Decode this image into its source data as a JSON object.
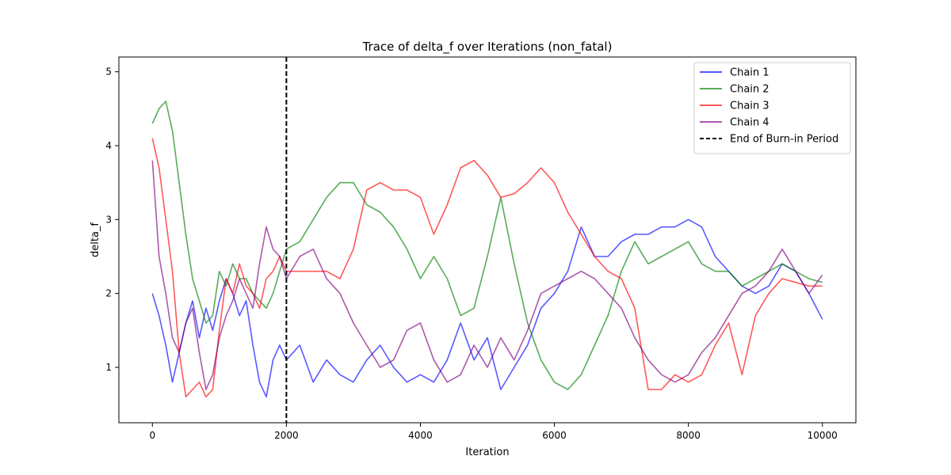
{
  "chart_data": {
    "type": "line",
    "title": "Trace of delta_f over Iterations (non_fatal)",
    "xlabel": "Iteration",
    "ylabel": "delta_f",
    "xlim": [
      -500,
      10500
    ],
    "ylim": [
      0.25,
      5.2
    ],
    "xticks": [
      0,
      2000,
      4000,
      6000,
      8000,
      10000
    ],
    "yticks": [
      1,
      2,
      3,
      4,
      5
    ],
    "grid": false,
    "legend_position": "top-right",
    "burn_in": {
      "x": 2000,
      "label": "End of Burn-in Period",
      "color": "#000000",
      "style": "dashed"
    },
    "series": [
      {
        "name": "Chain 1",
        "color": "#0000ff",
        "x": [
          0,
          100,
          200,
          300,
          400,
          500,
          600,
          700,
          800,
          900,
          1000,
          1100,
          1200,
          1300,
          1400,
          1500,
          1600,
          1700,
          1800,
          1900,
          2000,
          2200,
          2400,
          2600,
          2800,
          3000,
          3200,
          3400,
          3600,
          3800,
          4000,
          4200,
          4400,
          4600,
          4800,
          5000,
          5200,
          5400,
          5600,
          5800,
          6000,
          6200,
          6400,
          6600,
          6800,
          7000,
          7200,
          7400,
          7600,
          7800,
          8000,
          8200,
          8400,
          8600,
          8800,
          9000,
          9200,
          9400,
          9600,
          9800,
          10000
        ],
        "y": [
          2.0,
          1.7,
          1.3,
          0.8,
          1.2,
          1.6,
          1.9,
          1.4,
          1.8,
          1.5,
          1.9,
          2.2,
          2.0,
          1.7,
          1.9,
          1.3,
          0.8,
          0.6,
          1.1,
          1.3,
          1.1,
          1.3,
          0.8,
          1.1,
          0.9,
          0.8,
          1.1,
          1.3,
          1.0,
          0.8,
          0.9,
          0.8,
          1.1,
          1.6,
          1.1,
          1.4,
          0.7,
          1.0,
          1.3,
          1.8,
          2.0,
          2.3,
          2.9,
          2.5,
          2.5,
          2.7,
          2.8,
          2.8,
          2.9,
          2.9,
          3.0,
          2.9,
          2.5,
          2.3,
          2.1,
          2.0,
          2.1,
          2.4,
          2.3,
          2.0,
          1.65
        ]
      },
      {
        "name": "Chain 2",
        "color": "#008000",
        "x": [
          0,
          100,
          200,
          300,
          400,
          500,
          600,
          700,
          800,
          900,
          1000,
          1100,
          1200,
          1300,
          1400,
          1500,
          1600,
          1700,
          1800,
          1900,
          2000,
          2200,
          2400,
          2600,
          2800,
          3000,
          3200,
          3400,
          3600,
          3800,
          4000,
          4200,
          4400,
          4600,
          4800,
          5000,
          5200,
          5400,
          5600,
          5800,
          6000,
          6200,
          6400,
          6600,
          6800,
          7000,
          7200,
          7400,
          7600,
          7800,
          8000,
          8200,
          8400,
          8600,
          8800,
          9000,
          9200,
          9400,
          9600,
          9800,
          10000
        ],
        "y": [
          4.3,
          4.5,
          4.6,
          4.2,
          3.5,
          2.8,
          2.2,
          1.9,
          1.6,
          1.7,
          2.3,
          2.1,
          2.4,
          2.2,
          2.2,
          2.0,
          1.9,
          1.8,
          2.0,
          2.3,
          2.6,
          2.7,
          3.0,
          3.3,
          3.5,
          3.5,
          3.2,
          3.1,
          2.9,
          2.6,
          2.2,
          2.5,
          2.2,
          1.7,
          1.8,
          2.5,
          3.3,
          2.4,
          1.6,
          1.1,
          0.8,
          0.7,
          0.9,
          1.3,
          1.7,
          2.3,
          2.7,
          2.4,
          2.5,
          2.6,
          2.7,
          2.4,
          2.3,
          2.3,
          2.1,
          2.2,
          2.3,
          2.4,
          2.3,
          2.2,
          2.15
        ]
      },
      {
        "name": "Chain 3",
        "color": "#ff0000",
        "x": [
          0,
          100,
          200,
          300,
          400,
          500,
          600,
          700,
          800,
          900,
          1000,
          1100,
          1200,
          1300,
          1400,
          1500,
          1600,
          1700,
          1800,
          1900,
          2000,
          2200,
          2400,
          2600,
          2800,
          3000,
          3200,
          3400,
          3600,
          3800,
          4000,
          4200,
          4400,
          4600,
          4800,
          5000,
          5200,
          5400,
          5600,
          5800,
          6000,
          6200,
          6400,
          6600,
          6800,
          7000,
          7200,
          7400,
          7600,
          7800,
          8000,
          8200,
          8400,
          8600,
          8800,
          9000,
          9200,
          9400,
          9600,
          9800,
          10000
        ],
        "y": [
          4.1,
          3.7,
          3.0,
          2.3,
          1.2,
          0.6,
          0.7,
          0.8,
          0.6,
          0.7,
          1.5,
          2.2,
          2.0,
          2.4,
          2.1,
          2.0,
          1.8,
          2.2,
          2.3,
          2.5,
          2.3,
          2.3,
          2.3,
          2.3,
          2.2,
          2.6,
          3.4,
          3.5,
          3.4,
          3.4,
          3.3,
          2.8,
          3.2,
          3.7,
          3.8,
          3.6,
          3.3,
          3.35,
          3.5,
          3.7,
          3.5,
          3.1,
          2.8,
          2.5,
          2.3,
          2.2,
          1.8,
          0.7,
          0.7,
          0.9,
          0.8,
          0.9,
          1.3,
          1.6,
          0.9,
          1.7,
          2.0,
          2.2,
          2.15,
          2.1,
          2.1
        ]
      },
      {
        "name": "Chain 4",
        "color": "#800080",
        "x": [
          0,
          100,
          200,
          300,
          400,
          500,
          600,
          700,
          800,
          900,
          1000,
          1100,
          1200,
          1300,
          1400,
          1500,
          1600,
          1700,
          1800,
          1900,
          2000,
          2200,
          2400,
          2600,
          2800,
          3000,
          3200,
          3400,
          3600,
          3800,
          4000,
          4200,
          4400,
          4600,
          4800,
          5000,
          5200,
          5400,
          5600,
          5800,
          6000,
          6200,
          6400,
          6600,
          6800,
          7000,
          7200,
          7400,
          7600,
          7800,
          8000,
          8200,
          8400,
          8600,
          8800,
          9000,
          9200,
          9400,
          9600,
          9800,
          10000
        ],
        "y": [
          3.8,
          2.5,
          2.0,
          1.4,
          1.2,
          1.6,
          1.8,
          1.2,
          0.7,
          0.9,
          1.4,
          1.7,
          1.9,
          2.2,
          2.0,
          1.8,
          2.4,
          2.9,
          2.6,
          2.5,
          2.2,
          2.5,
          2.6,
          2.2,
          2.0,
          1.6,
          1.3,
          1.0,
          1.1,
          1.5,
          1.6,
          1.1,
          0.8,
          0.9,
          1.3,
          1.0,
          1.4,
          1.1,
          1.5,
          2.0,
          2.1,
          2.2,
          2.3,
          2.2,
          2.0,
          1.8,
          1.4,
          1.1,
          0.9,
          0.8,
          0.9,
          1.2,
          1.4,
          1.7,
          2.0,
          2.1,
          2.3,
          2.6,
          2.3,
          2.0,
          2.25
        ]
      }
    ]
  }
}
